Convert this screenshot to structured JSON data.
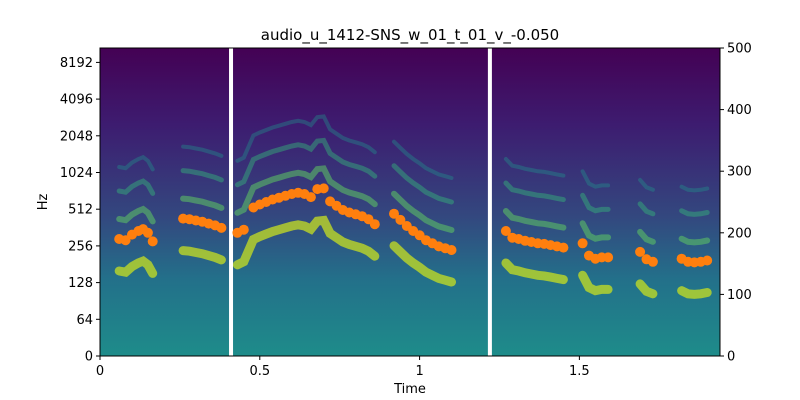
{
  "chart_data": {
    "type": "spectrogram",
    "title": "audio_u_1412-SNS_w_01_t_01_v_-0.050",
    "xlabel": "Time",
    "ylabel": "Hz",
    "xlim": [
      0,
      1.94
    ],
    "x_ticks": [
      {
        "value": 0,
        "label": "0"
      },
      {
        "value": 0.5,
        "label": "0.5"
      },
      {
        "value": 1,
        "label": "1"
      },
      {
        "value": 1.5,
        "label": "1.5"
      }
    ],
    "y_left_scale": "log2 (linear below 64)",
    "y_left_ticks": [
      {
        "value": 0,
        "label": "0"
      },
      {
        "value": 64,
        "label": "64"
      },
      {
        "value": 128,
        "label": "128"
      },
      {
        "value": 256,
        "label": "256"
      },
      {
        "value": 512,
        "label": "512"
      },
      {
        "value": 1024,
        "label": "1024"
      },
      {
        "value": 2048,
        "label": "2048"
      },
      {
        "value": 4096,
        "label": "4096"
      },
      {
        "value": 8192,
        "label": "8192"
      }
    ],
    "y_right_ylim": [
      0,
      500
    ],
    "y_right_ticks": [
      {
        "value": 0,
        "label": "0"
      },
      {
        "value": 100,
        "label": "100"
      },
      {
        "value": 200,
        "label": "200"
      },
      {
        "value": 300,
        "label": "300"
      },
      {
        "value": 400,
        "label": "400"
      },
      {
        "value": 500,
        "label": "500"
      }
    ],
    "segment_boundaries": [
      0.41,
      1.22
    ],
    "colormap": "viridis",
    "pitch_color": "#ff7f0e",
    "pitch_series": {
      "name": "",
      "points": [
        [
          0.06,
          190
        ],
        [
          0.08,
          188
        ],
        [
          0.1,
          197
        ],
        [
          0.12,
          203
        ],
        [
          0.135,
          206
        ],
        [
          0.15,
          200
        ],
        [
          0.165,
          186
        ],
        [
          0.26,
          223
        ],
        [
          0.28,
          222
        ],
        [
          0.3,
          220
        ],
        [
          0.32,
          218
        ],
        [
          0.34,
          215
        ],
        [
          0.36,
          212
        ],
        [
          0.38,
          208
        ],
        [
          0.43,
          200
        ],
        [
          0.45,
          205
        ],
        [
          0.48,
          241
        ],
        [
          0.5,
          246
        ],
        [
          0.52,
          250
        ],
        [
          0.54,
          254
        ],
        [
          0.56,
          257
        ],
        [
          0.58,
          260
        ],
        [
          0.6,
          263
        ],
        [
          0.62,
          265
        ],
        [
          0.64,
          263
        ],
        [
          0.66,
          258
        ],
        [
          0.68,
          271
        ],
        [
          0.7,
          272
        ],
        [
          0.72,
          251
        ],
        [
          0.74,
          244
        ],
        [
          0.76,
          237
        ],
        [
          0.78,
          233
        ],
        [
          0.8,
          230
        ],
        [
          0.82,
          227
        ],
        [
          0.84,
          222
        ],
        [
          0.86,
          214
        ],
        [
          0.92,
          231
        ],
        [
          0.94,
          221
        ],
        [
          0.96,
          211
        ],
        [
          0.98,
          203
        ],
        [
          1.0,
          196
        ],
        [
          1.02,
          188
        ],
        [
          1.04,
          183
        ],
        [
          1.06,
          178
        ],
        [
          1.08,
          175
        ],
        [
          1.1,
          172
        ],
        [
          1.27,
          203
        ],
        [
          1.29,
          192
        ],
        [
          1.31,
          190
        ],
        [
          1.33,
          187
        ],
        [
          1.35,
          185
        ],
        [
          1.37,
          183
        ],
        [
          1.39,
          182
        ],
        [
          1.41,
          180
        ],
        [
          1.43,
          178
        ],
        [
          1.45,
          176
        ],
        [
          1.51,
          183
        ],
        [
          1.53,
          163
        ],
        [
          1.55,
          158
        ],
        [
          1.57,
          160
        ],
        [
          1.59,
          160
        ],
        [
          1.69,
          169
        ],
        [
          1.71,
          157
        ],
        [
          1.73,
          153
        ],
        [
          1.82,
          158
        ],
        [
          1.84,
          153
        ],
        [
          1.86,
          152
        ],
        [
          1.88,
          153
        ],
        [
          1.9,
          155
        ]
      ]
    }
  }
}
